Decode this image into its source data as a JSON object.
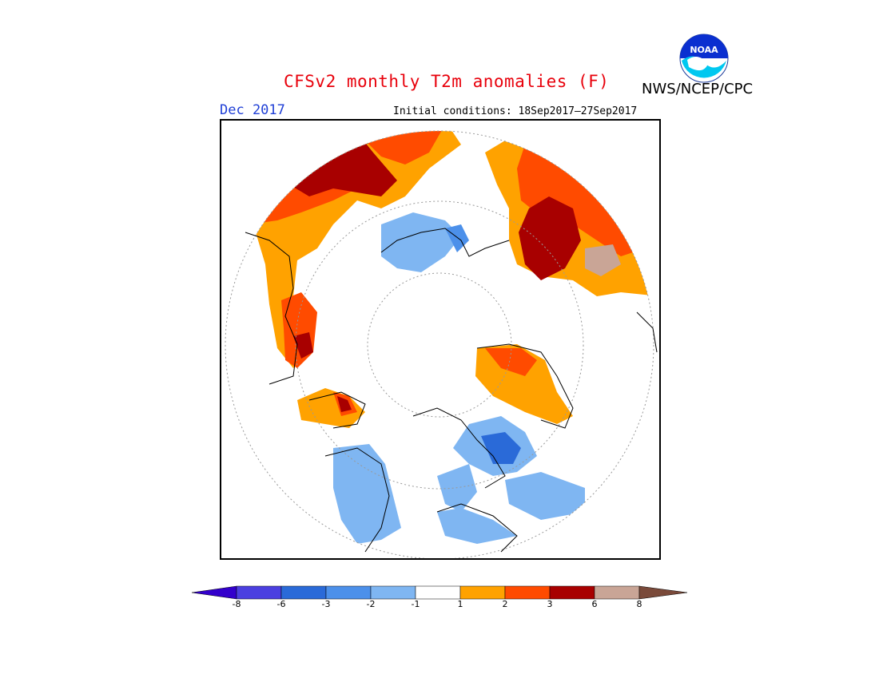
{
  "header": {
    "title": "CFSv2 monthly T2m anomalies (F)",
    "agency": "NWS/NCEP/CPC",
    "month": "Dec 2017",
    "initial_conditions": "Initial conditions: 18Sep2017—27Sep2017"
  },
  "logo": {
    "text": "NOAA",
    "icon": "noaa-logo-icon"
  },
  "legend": {
    "colors": [
      "#3300cc",
      "#4b3fe0",
      "#2a6ad8",
      "#4c90ea",
      "#7fb6f2",
      "#ffffff",
      "#ffa200",
      "#ff4b00",
      "#a80000",
      "#c9a596",
      "#7a4a3a"
    ],
    "labels": [
      "-8",
      "-6",
      "-3",
      "-2",
      "-1",
      "1",
      "2",
      "3",
      "6",
      "8"
    ]
  },
  "map": {
    "projection": "north-polar-stereographic",
    "anomaly_regions": [
      {
        "name": "western-russia-warm",
        "category": "2"
      },
      {
        "name": "western-russia-very-warm",
        "category": "6"
      },
      {
        "name": "east-siberia-warm",
        "category": "2"
      },
      {
        "name": "east-siberia-very-warm",
        "category": "6"
      },
      {
        "name": "europe-warm",
        "category": "1"
      },
      {
        "name": "north-africa-warm",
        "category": "2"
      },
      {
        "name": "greenland-warm",
        "category": "1"
      },
      {
        "name": "alaska-warm",
        "category": "2"
      },
      {
        "name": "north-siberia-cool",
        "category": "-1"
      },
      {
        "name": "hudson-bay-cool",
        "category": "-2"
      },
      {
        "name": "hudson-bay-cold",
        "category": "-3"
      },
      {
        "name": "north-america-cool",
        "category": "-1"
      }
    ]
  }
}
